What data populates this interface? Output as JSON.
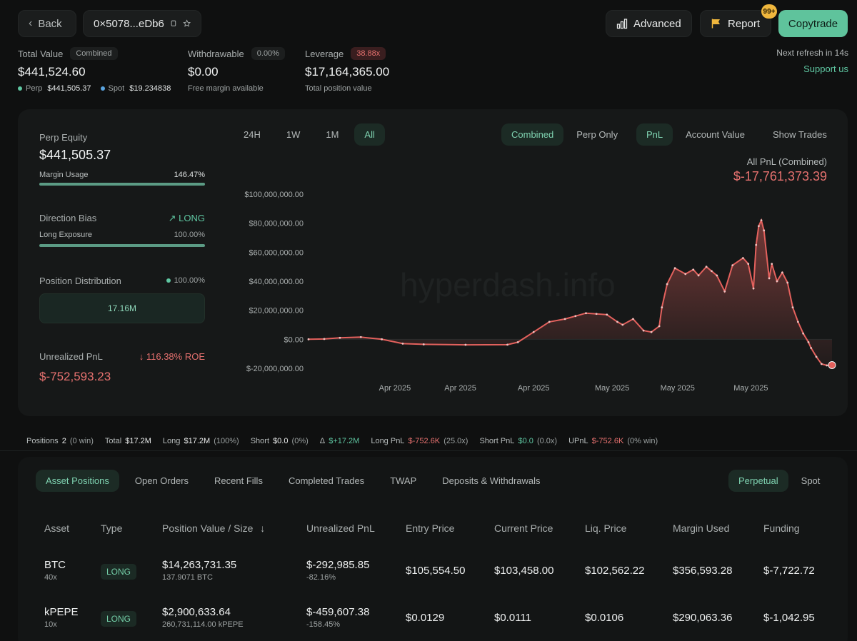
{
  "topbar": {
    "back_label": "Back",
    "address": "0×5078...eDb6",
    "advanced_label": "Advanced",
    "report_label": "Report",
    "report_badge": "99+",
    "copytrade_label": "Copytrade"
  },
  "summary": {
    "total_value_label": "Total Value",
    "total_value_tag": "Combined",
    "total_value": "$441,524.60",
    "perp_label": "Perp",
    "perp_value": "$441,505.37",
    "spot_label": "Spot",
    "spot_value": "$19.234838",
    "withdrawable_label": "Withdrawable",
    "withdrawable_tag": "0.00%",
    "withdrawable": "$0.00",
    "withdrawable_sub": "Free margin available",
    "leverage_label": "Leverage",
    "leverage_tag": "38.88x",
    "leverage_value": "$17,164,365.00",
    "leverage_sub": "Total position value",
    "refresh_text": "Next refresh in 14s",
    "support_link": "Support us"
  },
  "left": {
    "perp_equity_label": "Perp Equity",
    "perp_equity": "$441,505.37",
    "margin_usage_label": "Margin Usage",
    "margin_usage_value": "146.47%",
    "direction_bias_label": "Direction Bias",
    "direction_bias_value": "LONG",
    "long_exposure_label": "Long Exposure",
    "long_exposure_value": "100.00%",
    "position_dist_label": "Position Distribution",
    "position_dist_value": "100.00%",
    "position_dist_bar": "17.16M",
    "upnl_label": "Unrealized PnL",
    "upnl_roe": "116.38% ROE",
    "upnl_value": "$-752,593.23"
  },
  "chart_tabs": {
    "range": [
      "24H",
      "1W",
      "1M",
      "All"
    ],
    "modes": [
      "Combined",
      "Perp Only"
    ],
    "metric": [
      "PnL",
      "Account Value"
    ],
    "show_trades": "Show Trades"
  },
  "chart_header": {
    "subtitle": "All PnL (Combined)",
    "value": "$-17,761,373.39",
    "watermark": "hyperdash.info"
  },
  "chart_data": {
    "type": "area",
    "y_ticks": [
      "$100,000,000.00",
      "$80,000,000.00",
      "$60,000,000.00",
      "$40,000,000.00",
      "$20,000,000.00",
      "$0.00",
      "$-20,000,000.00"
    ],
    "ylim": [
      -20000000,
      100000000
    ],
    "x_ticks": [
      "Apr 2025",
      "Apr 2025",
      "Apr 2025",
      "May 2025",
      "May 2025",
      "May 2025"
    ],
    "x_tick_positions": [
      0.165,
      0.29,
      0.43,
      0.58,
      0.705,
      0.845
    ],
    "x": [
      0,
      0.03,
      0.06,
      0.1,
      0.14,
      0.18,
      0.22,
      0.3,
      0.38,
      0.4,
      0.43,
      0.46,
      0.49,
      0.51,
      0.53,
      0.55,
      0.57,
      0.59,
      0.6,
      0.62,
      0.64,
      0.655,
      0.67,
      0.675,
      0.685,
      0.7,
      0.72,
      0.735,
      0.745,
      0.76,
      0.77,
      0.78,
      0.795,
      0.81,
      0.83,
      0.84,
      0.85,
      0.855,
      0.86,
      0.865,
      0.87,
      0.88,
      0.885,
      0.895,
      0.905,
      0.915,
      0.925,
      0.935,
      0.945,
      0.955,
      0.96,
      0.97,
      0.98,
      0.99,
      1.0
    ],
    "values": [
      0,
      200000,
      1000000,
      1500000,
      0,
      -3000000,
      -3500000,
      -3800000,
      -3700000,
      -2000000,
      5000000,
      12000000,
      14000000,
      16000000,
      18000000,
      17500000,
      17000000,
      12000000,
      10000000,
      14000000,
      6000000,
      5000000,
      9000000,
      22000000,
      38000000,
      49000000,
      45000000,
      48000000,
      44000000,
      50000000,
      47000000,
      44000000,
      33000000,
      51000000,
      56000000,
      52000000,
      35000000,
      65000000,
      78000000,
      82000000,
      75000000,
      42000000,
      52000000,
      40000000,
      46000000,
      39000000,
      22000000,
      12000000,
      4000000,
      -2000000,
      -6000000,
      -12000000,
      -17000000,
      -18000000,
      -17761373
    ],
    "series": [
      {
        "color": "#e3615d"
      }
    ]
  },
  "stats_strip": {
    "positions_label": "Positions",
    "positions_value": "2",
    "positions_sub": "(0 win)",
    "total_label": "Total",
    "total_value": "$17.2M",
    "long_label": "Long",
    "long_value": "$17.2M",
    "long_sub": "(100%)",
    "short_label": "Short",
    "short_value": "$0.0",
    "short_sub": "(0%)",
    "delta_label": "Δ",
    "delta_value": "$+17.2M",
    "longpnl_label": "Long PnL",
    "longpnl_value": "$-752.6K",
    "longpnl_sub": "(25.0x)",
    "shortpnl_label": "Short PnL",
    "shortpnl_value": "$0.0",
    "shortpnl_sub": "(0.0x)",
    "upnl_label": "UPnL",
    "upnl_value": "$-752.6K",
    "upnl_sub": "(0% win)"
  },
  "bottom_tabs": [
    "Asset Positions",
    "Open Orders",
    "Recent Fills",
    "Completed Trades",
    "TWAP",
    "Deposits & Withdrawals"
  ],
  "market_tabs": [
    "Perpetual",
    "Spot"
  ],
  "table": {
    "headers": [
      "Asset",
      "Type",
      "Position Value / Size",
      "Unrealized PnL",
      "Entry Price",
      "Current Price",
      "Liq. Price",
      "Margin Used",
      "Funding"
    ],
    "rows": [
      {
        "asset": "BTC",
        "lev": "40x",
        "type": "LONG",
        "value": "$14,263,731.35",
        "size": "137.9071 BTC",
        "upnl": "$-292,985.85",
        "upnl_pct": "-82.16%",
        "entry": "$105,554.50",
        "current": "$103,458.00",
        "liq": "$102,562.22",
        "margin": "$356,593.28",
        "funding": "$-7,722.72"
      },
      {
        "asset": "kPEPE",
        "lev": "10x",
        "type": "LONG",
        "value": "$2,900,633.64",
        "size": "260,731,114.00 kPEPE",
        "upnl": "$-459,607.38",
        "upnl_pct": "-158.45%",
        "entry": "$0.0129",
        "current": "$0.0111",
        "liq": "$0.0106",
        "margin": "$290,063.36",
        "funding": "$-1,042.95"
      }
    ]
  }
}
